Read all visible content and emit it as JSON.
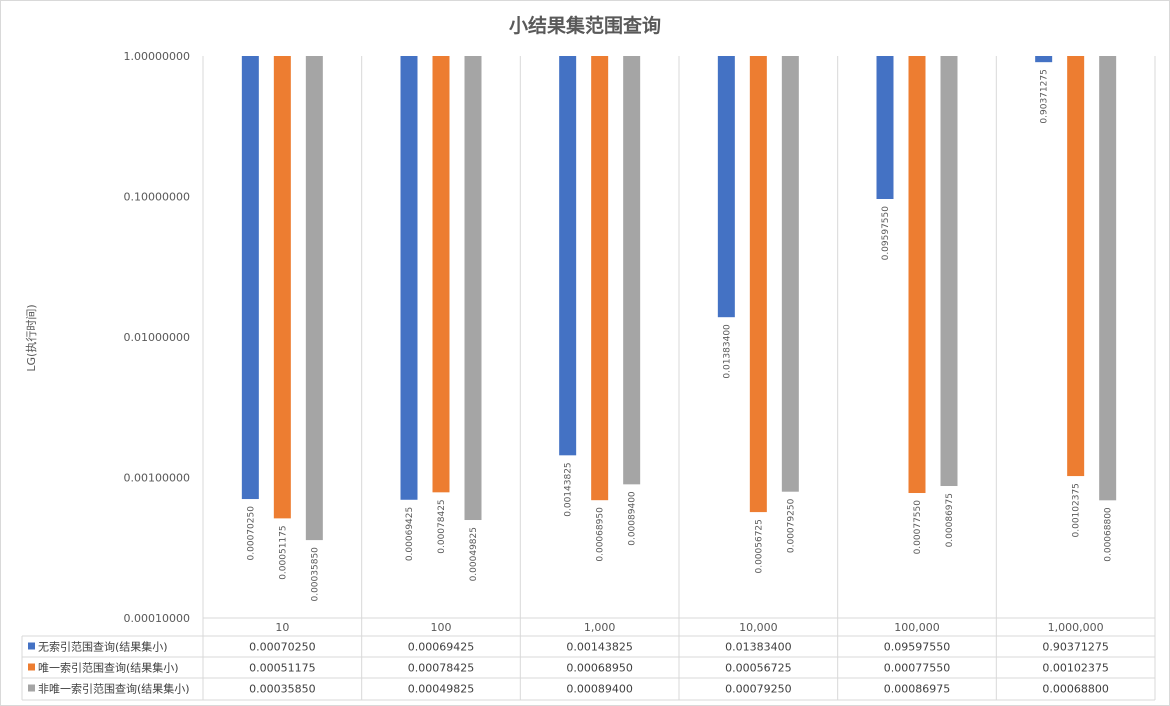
{
  "chart_data": {
    "type": "bar",
    "title": "小结果集范围查询",
    "ylabel": "LG(执行时间)",
    "yscale": "log",
    "ylim": [
      0.0001,
      1
    ],
    "yticks": [
      "1.00000000",
      "0.10000000",
      "0.01000000",
      "0.00100000",
      "0.00010000"
    ],
    "ytick_values": [
      1,
      0.1,
      0.01,
      0.001,
      0.0001
    ],
    "bars_hang_from": 1,
    "categories": [
      "10",
      "100",
      "1,000",
      "10,000",
      "100,000",
      "1,000,000"
    ],
    "series": [
      {
        "name": "无索引范围查询(结果集小)",
        "color": "#4472C4",
        "values": [
          0.0007025,
          0.00069425,
          0.00143825,
          0.013834,
          0.0959755,
          0.90371275
        ],
        "labels": [
          "0.00070250",
          "0.00069425",
          "0.00143825",
          "0.01383400",
          "0.09597550",
          "0.90371275"
        ]
      },
      {
        "name": "唯一索引范围查询(结果集小)",
        "color": "#ED7D31",
        "values": [
          0.00051175,
          0.00078425,
          0.0006895,
          0.00056725,
          0.0007755,
          0.00102375
        ],
        "labels": [
          "0.00051175",
          "0.00078425",
          "0.00068950",
          "0.00056725",
          "0.00077550",
          "0.00102375"
        ]
      },
      {
        "name": "非唯一索引范围查询(结果集小)",
        "color": "#A5A5A5",
        "values": [
          0.0003585,
          0.00049825,
          0.000894,
          0.0007925,
          0.00086975,
          0.000688
        ],
        "labels": [
          "0.00035850",
          "0.00049825",
          "0.00089400",
          "0.00079250",
          "0.00086975",
          "0.00068800"
        ]
      }
    ],
    "grid": false,
    "data_table": true
  }
}
